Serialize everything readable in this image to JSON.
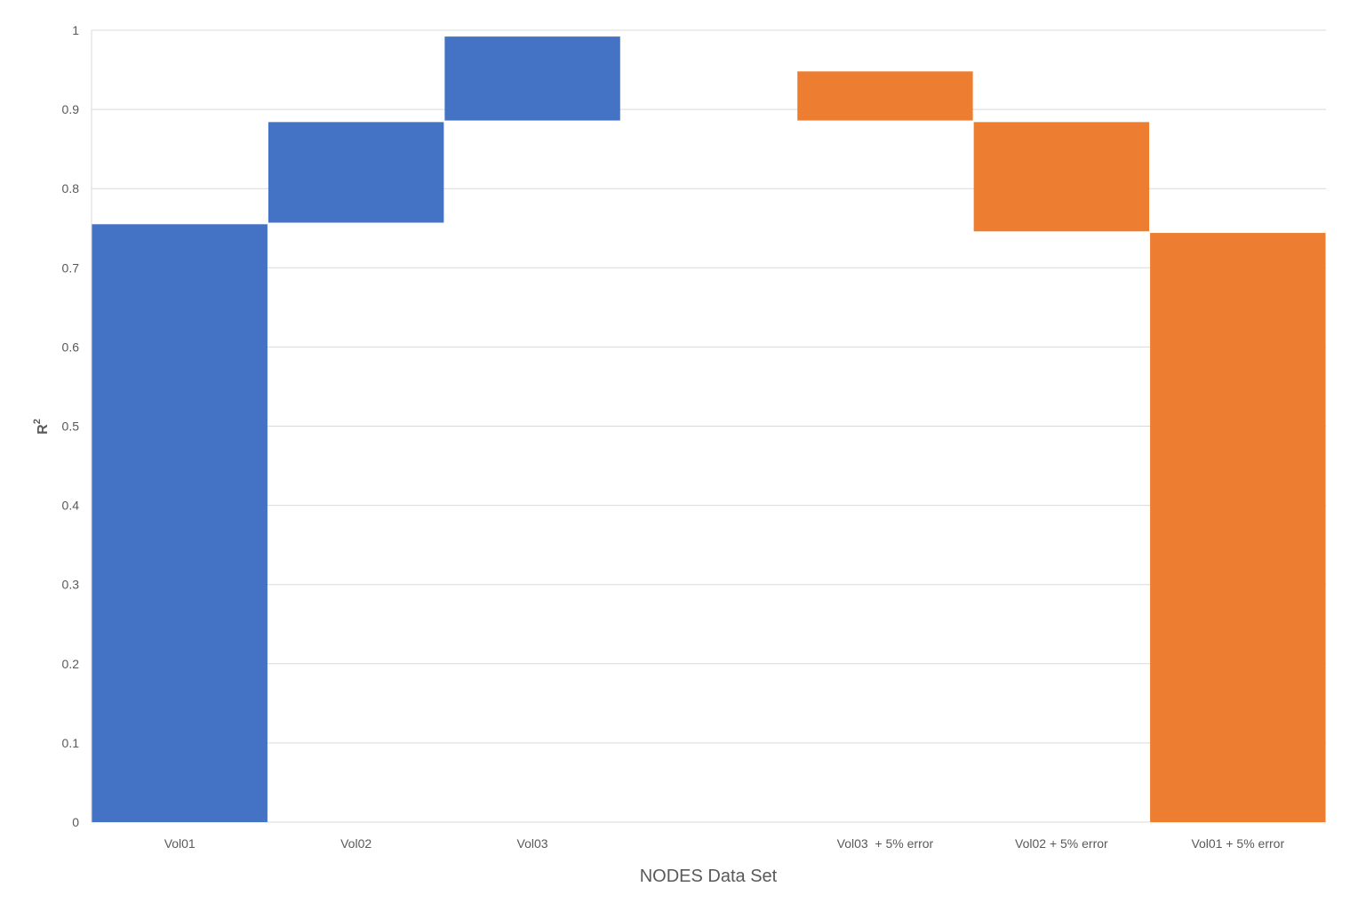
{
  "chart_data": {
    "type": "bar",
    "subtype": "waterfall",
    "title": "",
    "xlabel": "NODES Data Set",
    "ylabel": "R",
    "ylabel_superscript": "2",
    "ylim": [
      0,
      1
    ],
    "yticks": [
      "0",
      "0.1",
      "0.2",
      "0.3",
      "0.4",
      "0.5",
      "0.6",
      "0.7",
      "0.8",
      "0.9",
      "1"
    ],
    "grid": true,
    "legend": "none",
    "categories": [
      "Vol01",
      "Vol02",
      "Vol03",
      "",
      "Vol03  + 5% error",
      "Vol02 + 5% error",
      "Vol01 + 5% error"
    ],
    "bars": [
      {
        "category": "Vol01",
        "start": 0,
        "end": 0.755,
        "color": "#4472C4"
      },
      {
        "category": "Vol02",
        "start": 0.757,
        "end": 0.884,
        "color": "#4472C4"
      },
      {
        "category": "Vol03",
        "start": 0.886,
        "end": 0.992,
        "color": "#4472C4"
      },
      {
        "category": "",
        "start": null,
        "end": null,
        "color": null
      },
      {
        "category": "Vol03  + 5% error",
        "start": 0.886,
        "end": 0.948,
        "color": "#ED7D31"
      },
      {
        "category": "Vol02 + 5% error",
        "start": 0.746,
        "end": 0.884,
        "color": "#ED7D31"
      },
      {
        "category": "Vol01 + 5% error",
        "start": 0,
        "end": 0.744,
        "color": "#ED7D31"
      }
    ],
    "colors": {
      "blue": "#4472C4",
      "orange": "#ED7D31",
      "gridline": "#D9D9D9",
      "text": "#595959"
    }
  }
}
